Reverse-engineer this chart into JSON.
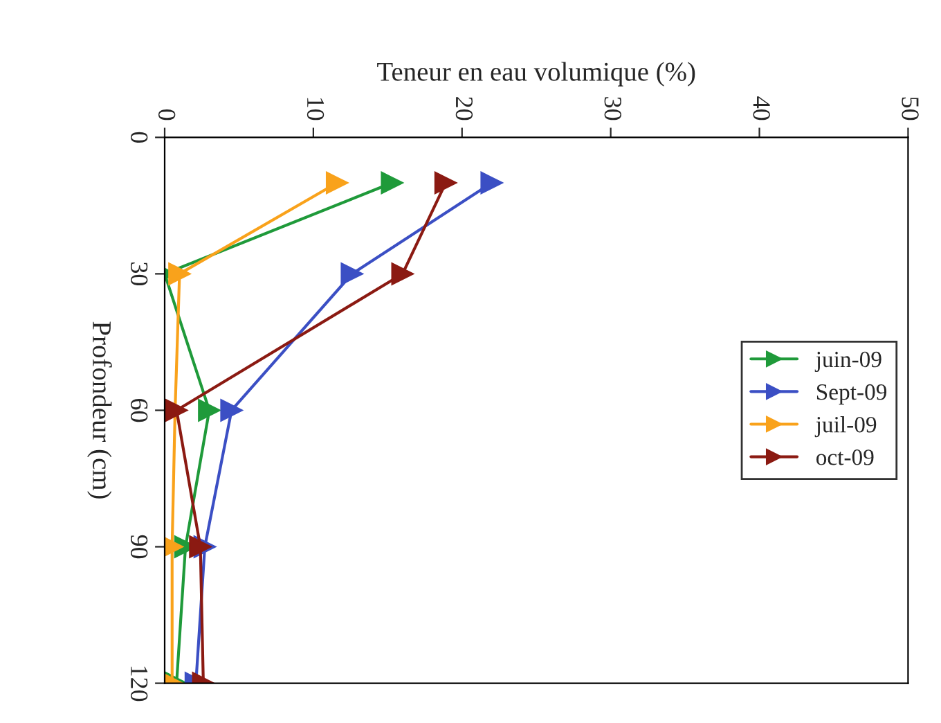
{
  "chart_data": {
    "type": "line",
    "xlabel": "Teneur en eau volumique (%)",
    "ylabel": "Profondeur (cm)",
    "xlim": [
      0,
      50
    ],
    "xticks": [
      0,
      10,
      20,
      30,
      40,
      50
    ],
    "ylim": [
      120,
      0
    ],
    "yticks": [
      0,
      30,
      60,
      90,
      120
    ],
    "marker": "triangle",
    "legend": "right",
    "grid": false,
    "series": [
      {
        "name": "juin-09",
        "color": "#1f9a3a",
        "x": [
          15.3,
          0,
          3.0,
          1.4,
          0.8
        ],
        "values": [
          10,
          30,
          60,
          90,
          120
        ]
      },
      {
        "name": "Sept-09",
        "color": "#3b4fc4",
        "x": [
          22,
          12.6,
          4.5,
          2.7,
          2.1
        ],
        "values": [
          10,
          30,
          60,
          90,
          120
        ]
      },
      {
        "name": "juil-09",
        "color": "#f9a21b",
        "x": [
          11.6,
          1.0,
          0.7,
          0.5,
          0.5
        ],
        "values": [
          10,
          30,
          60,
          90,
          120
        ]
      },
      {
        "name": "oct-09",
        "color": "#8b1a12",
        "x": [
          18.9,
          16,
          0.8,
          2.4,
          2.6
        ],
        "values": [
          10,
          30,
          60,
          90,
          120
        ]
      }
    ]
  }
}
